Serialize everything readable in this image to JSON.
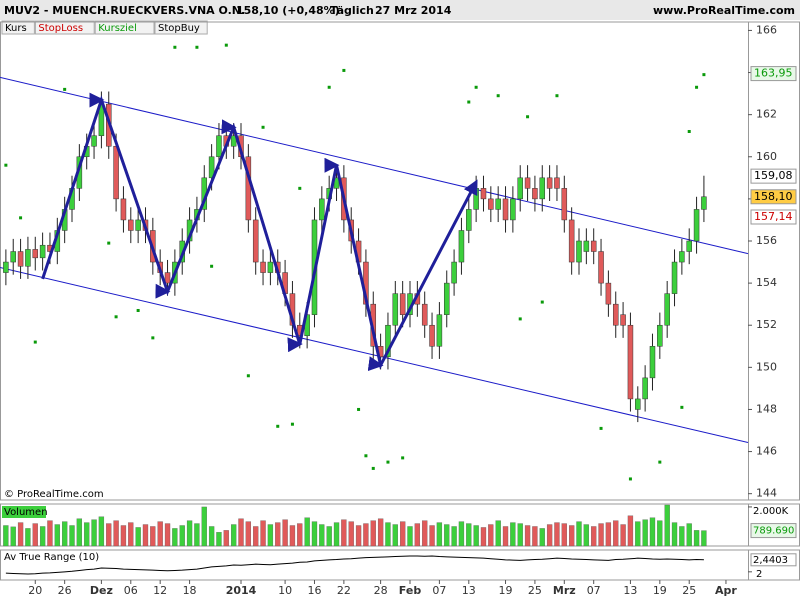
{
  "header": {
    "title": "MUV2 - MUENCH.RUECKVERS.VNA O.N.",
    "quote": "158,10 (+0,48%)",
    "period": "Täglich",
    "date": "27 Mrz 2014",
    "site": "www.ProRealTime.com",
    "buttons": [
      "Kurs",
      "StopLoss",
      "Kursziel",
      "StopBuy"
    ],
    "copyright": "© ProRealTime.com"
  },
  "chart_data": [
    {
      "type": "candlestick",
      "up_color": "#3ccf3c",
      "down_color": "#e05a5a",
      "xlim": [
        -0.8,
        101
      ],
      "ylim": [
        143.7,
        166.4
      ],
      "yticks": [
        144,
        146,
        148,
        150,
        152,
        154,
        156,
        158,
        160,
        162,
        164,
        166
      ],
      "xticks": [
        {
          "value": 4,
          "label": "20"
        },
        {
          "value": 8,
          "label": "26"
        },
        {
          "value": 13,
          "label": "Dez"
        },
        {
          "value": 17,
          "label": "06"
        },
        {
          "value": 21,
          "label": "12"
        },
        {
          "value": 25,
          "label": "18"
        },
        {
          "value": 32,
          "label": "2014"
        },
        {
          "value": 38,
          "label": "10"
        },
        {
          "value": 42,
          "label": "16"
        },
        {
          "value": 46,
          "label": "22"
        },
        {
          "value": 51,
          "label": "28"
        },
        {
          "value": 55,
          "label": "Feb"
        },
        {
          "value": 59,
          "label": "07"
        },
        {
          "value": 63,
          "label": "13"
        },
        {
          "value": 68,
          "label": "19"
        },
        {
          "value": 72,
          "label": "25"
        },
        {
          "value": 76,
          "label": "Mrz"
        },
        {
          "value": 80,
          "label": "07"
        },
        {
          "value": 85,
          "label": "13"
        },
        {
          "value": 89,
          "label": "19"
        },
        {
          "value": 93,
          "label": "25"
        },
        {
          "value": 98,
          "label": "Apr"
        }
      ],
      "open": [
        154.5,
        155,
        155.5,
        154.8,
        155.6,
        155.2,
        155.8,
        155.5,
        156.5,
        157.5,
        158.5,
        160,
        160.5,
        161,
        162.5,
        160.5,
        158,
        157,
        156.5,
        157,
        156.5,
        155,
        154.5,
        154,
        155,
        156,
        157,
        157.5,
        159,
        160,
        161,
        160.5,
        161,
        160,
        157,
        155,
        154.5,
        155,
        154.5,
        153.5,
        152,
        151.5,
        152.5,
        157,
        158,
        158.5,
        159,
        157,
        156,
        155,
        153,
        151,
        150.5,
        152,
        153.5,
        152.5,
        153.5,
        153,
        152,
        151,
        152.5,
        154,
        155,
        156.5,
        157.5,
        158.5,
        158,
        157.5,
        158,
        157,
        158,
        159,
        158.5,
        158,
        159,
        159,
        158.5,
        157,
        155,
        155.5,
        156,
        155.5,
        154,
        153,
        152.5,
        152,
        148,
        148.5,
        149.5,
        151,
        152,
        153.5,
        155,
        155.5,
        156,
        157.5
      ],
      "high": [
        155.6,
        156.1,
        156.1,
        156.2,
        156.2,
        156.4,
        156.4,
        157.1,
        158.1,
        159.1,
        160.6,
        161.1,
        161.6,
        163.1,
        163.1,
        161.1,
        158.6,
        157.6,
        157.6,
        157.6,
        157.1,
        155.6,
        155.1,
        155.6,
        156.6,
        157.6,
        158.1,
        159.6,
        160.6,
        161.6,
        161.6,
        161.6,
        161.6,
        160.6,
        157.6,
        155.6,
        155.6,
        155.6,
        155.1,
        154.1,
        152.6,
        153.1,
        157.6,
        158.6,
        159.1,
        159.6,
        159.6,
        157.6,
        156.6,
        155.6,
        153.6,
        151.6,
        152.6,
        154.1,
        154.1,
        154.1,
        154.1,
        153.6,
        152.6,
        153.1,
        154.6,
        155.6,
        157.1,
        158.1,
        159.1,
        159.1,
        158.6,
        158.6,
        158.6,
        158.6,
        159.6,
        159.6,
        159.1,
        159.6,
        159.6,
        159.6,
        159.1,
        157.6,
        156.6,
        156.6,
        156.6,
        156.1,
        154.6,
        153.6,
        153.1,
        152.6,
        149.1,
        150.1,
        151.6,
        152.6,
        154.1,
        155.6,
        156.1,
        156.6,
        158.1,
        159.1
      ],
      "low": [
        153.9,
        154.4,
        154.2,
        154.2,
        154.6,
        154.6,
        154.9,
        154.9,
        155.9,
        156.9,
        157.9,
        159.4,
        159.9,
        160.4,
        159.9,
        157.4,
        156.4,
        155.9,
        155.9,
        155.9,
        154.4,
        153.9,
        153.4,
        153.4,
        154.4,
        155.4,
        156.4,
        156.9,
        158.4,
        159.4,
        159.9,
        159.9,
        159.4,
        156.4,
        154.4,
        153.9,
        153.9,
        153.9,
        152.9,
        151.4,
        150.9,
        150.9,
        151.9,
        156.4,
        157.4,
        157.9,
        156.4,
        155.4,
        154.4,
        152.4,
        150.4,
        149.9,
        149.9,
        151.4,
        151.9,
        151.9,
        152.4,
        151.4,
        150.4,
        150.4,
        151.9,
        153.4,
        154.4,
        155.9,
        156.9,
        157.4,
        156.9,
        156.9,
        156.4,
        156.4,
        157.4,
        157.9,
        157.4,
        157.4,
        157.9,
        157.9,
        156.4,
        154.4,
        154.4,
        154.9,
        154.9,
        153.4,
        152.4,
        151.4,
        151.4,
        147.9,
        147.4,
        147.9,
        148.9,
        150.4,
        151.4,
        152.9,
        154.4,
        154.9,
        155.4,
        156.9
      ],
      "close": [
        155,
        155.5,
        154.8,
        155.6,
        155.2,
        155.8,
        155.5,
        156.5,
        157.5,
        158.5,
        160,
        160.5,
        161,
        162.5,
        160.5,
        158,
        157,
        156.5,
        157,
        156.5,
        155,
        154.5,
        154,
        155,
        156,
        157,
        157.5,
        159,
        160,
        161,
        160.5,
        161,
        160,
        157,
        155,
        154.5,
        155,
        154.5,
        153.5,
        152,
        151.5,
        152.5,
        157,
        158,
        158.5,
        159,
        157,
        156,
        155,
        153,
        151,
        150.5,
        152,
        153.5,
        152.5,
        153.5,
        153,
        152,
        151,
        152.5,
        154,
        155,
        156.5,
        157.5,
        158.5,
        158,
        157.5,
        158,
        157,
        158,
        159,
        158.5,
        158,
        159,
        158.5,
        158.5,
        157,
        155,
        156,
        156,
        155.5,
        154,
        153,
        152,
        152,
        148.5,
        148.5,
        149.5,
        151,
        152,
        153.5,
        155,
        155.5,
        156,
        157.5,
        158.1
      ],
      "channel_color": "#1c1cc8",
      "channels": [
        {
          "x": [
            -0.8,
            101
          ],
          "y": [
            163.77,
            155.4
          ]
        },
        {
          "x": [
            -0.8,
            101
          ],
          "y": [
            154.74,
            146.43
          ]
        }
      ],
      "zigzag_color": "#1f1f9a",
      "zigzag_x": [
        5,
        13,
        22,
        31,
        40,
        45,
        51,
        64
      ],
      "zigzag_y": [
        154.2,
        162.7,
        153.6,
        161.4,
        151.1,
        159.6,
        150.1,
        158.8
      ],
      "targets": {
        "color": "#0a9a0a",
        "x": [
          0,
          4,
          8,
          2,
          14,
          15,
          18,
          20,
          23,
          26,
          28,
          30,
          33,
          35,
          37,
          39,
          40,
          44,
          46,
          48,
          49,
          50,
          52,
          54,
          63,
          64,
          67,
          70,
          71,
          73,
          75,
          81,
          85,
          89,
          92,
          93,
          94,
          95
        ],
        "y": [
          159.6,
          151.2,
          163.2,
          157.1,
          155.9,
          152.4,
          152.7,
          151.4,
          165.2,
          165.2,
          154.8,
          165.3,
          149.6,
          161.4,
          147.2,
          147.3,
          158.5,
          163.3,
          164.1,
          148,
          145.8,
          145.2,
          145.5,
          145.7,
          162.6,
          163.3,
          162.9,
          152.3,
          161.9,
          153.1,
          162.9,
          147.1,
          144.7,
          145.5,
          148.1,
          161.2,
          163.3,
          163.9
        ]
      },
      "price_labels": [
        {
          "value": 163.95,
          "label": "163,95",
          "color": "#0a9a0a",
          "bg": "#e8f8e8"
        },
        {
          "value": 159.08,
          "label": "159,08",
          "color": "#000000",
          "bg": "#ffffff"
        },
        {
          "value": 158.1,
          "label": "158,10",
          "color": "#000000",
          "bg": "#ffcc44"
        },
        {
          "value": 157.14,
          "label": "157,14",
          "color": "#cc0000",
          "bg": "#ffffff"
        }
      ]
    },
    {
      "type": "volume",
      "title": "Volumen",
      "ylim": [
        0,
        2150000
      ],
      "yticks": [
        {
          "value": 2000000,
          "label": "2.000K"
        }
      ],
      "values": [
        1050000,
        980000,
        1200000,
        900000,
        1150000,
        1000000,
        1300000,
        1100000,
        1250000,
        1050000,
        1400000,
        1200000,
        1350000,
        1500000,
        1150000,
        1300000,
        1050000,
        1200000,
        950000,
        1100000,
        1000000,
        1250000,
        1150000,
        900000,
        1050000,
        1300000,
        1150000,
        2000000,
        1000000,
        700000,
        800000,
        1100000,
        1400000,
        1250000,
        1000000,
        1300000,
        1100000,
        1200000,
        1350000,
        1050000,
        1150000,
        1450000,
        1250000,
        1100000,
        1000000,
        1200000,
        1350000,
        1250000,
        1050000,
        1150000,
        1300000,
        1400000,
        1200000,
        1100000,
        1250000,
        1000000,
        1150000,
        1300000,
        1050000,
        1200000,
        1100000,
        1000000,
        1250000,
        1150000,
        1050000,
        950000,
        1100000,
        1300000,
        1000000,
        1200000,
        1150000,
        1050000,
        1000000,
        900000,
        1100000,
        1200000,
        1150000,
        1050000,
        1250000,
        1100000,
        1000000,
        1150000,
        1200000,
        1300000,
        1100000,
        1550000,
        1250000,
        1350000,
        1450000,
        1300000,
        2100000,
        1200000,
        1000000,
        1150000,
        800000,
        789690
      ],
      "current_label": {
        "value": 789690,
        "label": "789.690"
      }
    },
    {
      "type": "line",
      "title": "Av True Range (10)",
      "color": "#000000",
      "ylim": [
        1.7,
        2.8
      ],
      "yticks": [
        2
      ],
      "values": [
        1.95,
        1.94,
        1.93,
        1.92,
        1.93,
        1.95,
        1.96,
        1.98,
        2.0,
        2.02,
        2.05,
        2.08,
        2.1,
        2.14,
        2.13,
        2.12,
        2.1,
        2.09,
        2.08,
        2.07,
        2.06,
        2.05,
        2.04,
        2.05,
        2.06,
        2.08,
        2.1,
        2.14,
        2.18,
        2.2,
        2.22,
        2.25,
        2.24,
        2.26,
        2.28,
        2.27,
        2.26,
        2.28,
        2.3,
        2.32,
        2.35,
        2.36,
        2.4,
        2.42,
        2.44,
        2.45,
        2.47,
        2.48,
        2.5,
        2.52,
        2.53,
        2.54,
        2.55,
        2.56,
        2.57,
        2.58,
        2.58,
        2.57,
        2.58,
        2.56,
        2.55,
        2.54,
        2.53,
        2.52,
        2.51,
        2.5,
        2.48,
        2.46,
        2.44,
        2.43,
        2.42,
        2.44,
        2.45,
        2.46,
        2.48,
        2.5,
        2.49,
        2.47,
        2.46,
        2.45,
        2.44,
        2.43,
        2.42,
        2.45,
        2.46,
        2.48,
        2.5,
        2.49,
        2.47,
        2.46,
        2.47,
        2.46,
        2.45,
        2.44,
        2.45,
        2.4403
      ],
      "current_label": {
        "value": 2.4403,
        "label": "2,4403"
      }
    }
  ]
}
